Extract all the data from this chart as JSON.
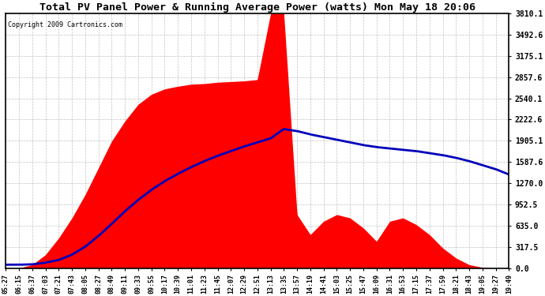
{
  "title": "Total PV Panel Power & Running Average Power (watts) Mon May 18 20:06",
  "copyright": "Copyright 2009 Cartronics.com",
  "yticks": [
    0.0,
    317.5,
    635.0,
    952.5,
    1270.0,
    1587.6,
    1905.1,
    2222.6,
    2540.1,
    2857.6,
    3175.1,
    3492.6,
    3810.1
  ],
  "ymax": 3810.1,
  "ymin": 0.0,
  "fill_color": "#FF0000",
  "avg_color": "#0000BB",
  "background_color": "#FFFFFF",
  "grid_color": "#BBBBBB",
  "xtick_labels": [
    "05:27",
    "06:15",
    "06:37",
    "07:03",
    "07:21",
    "07:43",
    "08:05",
    "08:27",
    "08:49",
    "09:11",
    "09:33",
    "09:55",
    "10:17",
    "10:39",
    "11:01",
    "11:23",
    "11:45",
    "12:07",
    "12:29",
    "12:51",
    "13:13",
    "13:35",
    "13:57",
    "14:19",
    "14:41",
    "15:03",
    "15:25",
    "15:47",
    "16:09",
    "16:31",
    "16:53",
    "17:15",
    "17:37",
    "17:59",
    "18:21",
    "18:43",
    "19:05",
    "19:27",
    "19:49"
  ],
  "pv_values": [
    0,
    0,
    50,
    200,
    450,
    750,
    1100,
    1500,
    1900,
    2200,
    2450,
    2600,
    2680,
    2720,
    2750,
    2760,
    2780,
    2790,
    2800,
    2820,
    3810,
    3810,
    800,
    500,
    700,
    800,
    750,
    600,
    400,
    700,
    750,
    650,
    500,
    300,
    150,
    50,
    10,
    0,
    0
  ],
  "avg_values": [
    50,
    50,
    55,
    80,
    120,
    200,
    320,
    480,
    660,
    850,
    1020,
    1170,
    1300,
    1410,
    1510,
    1600,
    1680,
    1750,
    1820,
    1880,
    1940,
    2080,
    2050,
    2000,
    1960,
    1920,
    1880,
    1840,
    1810,
    1790,
    1770,
    1750,
    1720,
    1690,
    1650,
    1600,
    1540,
    1480,
    1400
  ]
}
